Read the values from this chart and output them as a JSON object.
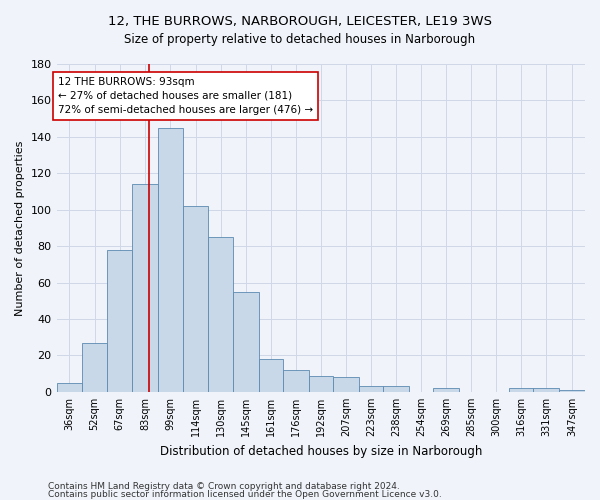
{
  "title1": "12, THE BURROWS, NARBOROUGH, LEICESTER, LE19 3WS",
  "title2": "Size of property relative to detached houses in Narborough",
  "xlabel": "Distribution of detached houses by size in Narborough",
  "ylabel": "Number of detached properties",
  "bin_labels": [
    "36sqm",
    "52sqm",
    "67sqm",
    "83sqm",
    "99sqm",
    "114sqm",
    "130sqm",
    "145sqm",
    "161sqm",
    "176sqm",
    "192sqm",
    "207sqm",
    "223sqm",
    "238sqm",
    "254sqm",
    "269sqm",
    "285sqm",
    "300sqm",
    "316sqm",
    "331sqm",
    "347sqm"
  ],
  "bin_edges": [
    36,
    52,
    67,
    83,
    99,
    114,
    130,
    145,
    161,
    176,
    192,
    207,
    223,
    238,
    254,
    269,
    285,
    300,
    316,
    331,
    347
  ],
  "bar_heights": [
    5,
    27,
    78,
    114,
    145,
    102,
    85,
    55,
    18,
    12,
    9,
    8,
    3,
    3,
    0,
    2,
    0,
    0,
    2,
    2,
    1
  ],
  "bar_color": "#c8d8e8",
  "bar_edge_color": "#5a8ab0",
  "property_size": 93,
  "vline_color": "#cc0000",
  "annotation_text": "12 THE BURROWS: 93sqm\n← 27% of detached houses are smaller (181)\n72% of semi-detached houses are larger (476) →",
  "annotation_box_color": "#ffffff",
  "annotation_box_edge": "#cc0000",
  "ylim": [
    0,
    180
  ],
  "yticks": [
    0,
    20,
    40,
    60,
    80,
    100,
    120,
    140,
    160,
    180
  ],
  "grid_color": "#d0d8e8",
  "footnote1": "Contains HM Land Registry data © Crown copyright and database right 2024.",
  "footnote2": "Contains public sector information licensed under the Open Government Licence v3.0.",
  "bg_color": "#f0f4fa",
  "title1_fontsize": 9.5,
  "title2_fontsize": 8.5,
  "xlabel_fontsize": 8.5,
  "ylabel_fontsize": 8,
  "tick_fontsize": 7,
  "annot_fontsize": 7.5,
  "footnote_fontsize": 6.5
}
